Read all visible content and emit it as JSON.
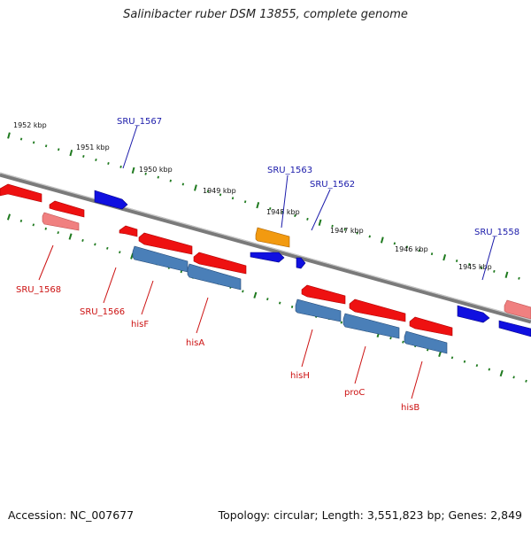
{
  "header": {
    "title": "Salinibacter ruber DSM 13855, complete genome"
  },
  "footer": {
    "accession": "Accession: NC_007677",
    "topology": "Topology: circular; Length: 3,551,823 bp; Genes: 2,849"
  },
  "colors": {
    "backbone": "#7a7a7a",
    "tick": "#1f7a1f",
    "gene_red": "#ee1111",
    "gene_pink": "#f08080",
    "gene_blue": "#1010e0",
    "gene_steel": "#4a7fb8",
    "gene_orange": "#f29a10",
    "label_blue": "#1a1aaa",
    "label_red": "#cc1111"
  },
  "scale": {
    "ticks": [
      "1952 kbp",
      "1951 kbp",
      "1950 kbp",
      "1949 kbp",
      "1948 kbp",
      "1947 kbp",
      "1946 kbp",
      "1945 kbp"
    ]
  },
  "genes": [
    {
      "id": "g1",
      "label": "SRU_1568",
      "label_color": "red",
      "strand": "reverse"
    },
    {
      "id": "g2",
      "label": "SRU_1567",
      "label_color": "blue",
      "strand": "forward"
    },
    {
      "id": "g3",
      "label": "SRU_1566",
      "label_color": "red",
      "strand": "reverse"
    },
    {
      "id": "g4",
      "label": "hisF",
      "label_color": "red",
      "strand": "reverse"
    },
    {
      "id": "g5",
      "label": "hisA",
      "label_color": "red",
      "strand": "reverse"
    },
    {
      "id": "g6",
      "label": "SRU_1563",
      "label_color": "blue",
      "strand": "forward"
    },
    {
      "id": "g7",
      "label": "SRU_1562",
      "label_color": "blue",
      "strand": "forward"
    },
    {
      "id": "g8",
      "label": "hisH",
      "label_color": "red",
      "strand": "reverse"
    },
    {
      "id": "g9",
      "label": "proC",
      "label_color": "red",
      "strand": "reverse"
    },
    {
      "id": "g10",
      "label": "hisB",
      "label_color": "red",
      "strand": "reverse"
    },
    {
      "id": "g11",
      "label": "SRU_1558",
      "label_color": "blue",
      "strand": "forward"
    }
  ]
}
